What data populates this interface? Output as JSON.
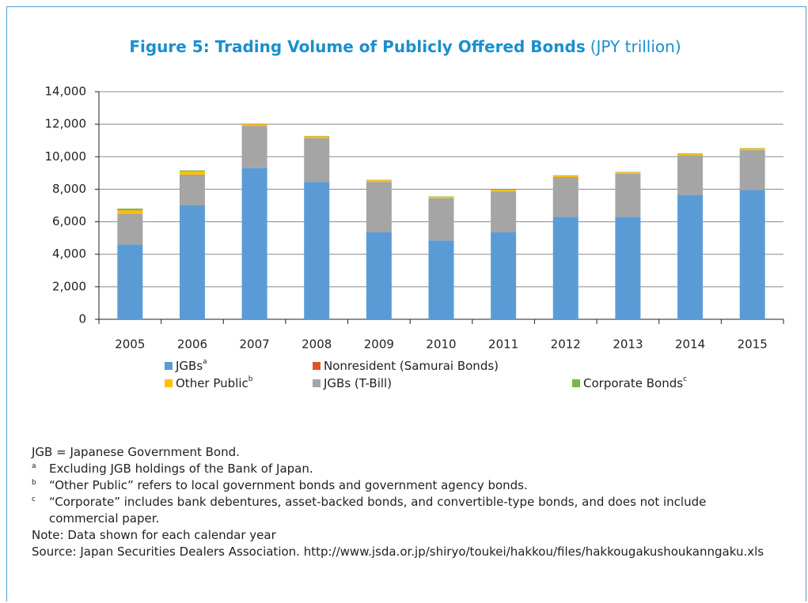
{
  "chart_data": {
    "type": "stacked_bar",
    "title": "Figure 5: Trading Volume of Publicly Offered Bonds",
    "title_unit": "(JPY trillion)",
    "categories": [
      "2005",
      "2006",
      "2007",
      "2008",
      "2009",
      "2010",
      "2011",
      "2012",
      "2013",
      "2014",
      "2015"
    ],
    "series": [
      {
        "name": "JGBs",
        "marker": "a",
        "color": "#5b9bd5",
        "values": [
          4600,
          7000,
          9300,
          8450,
          5350,
          4850,
          5350,
          6300,
          6300,
          7650,
          7950
        ]
      },
      {
        "name": "JGBs (T-Bill)",
        "color": "#a5a5a5",
        "values": [
          1900,
          1900,
          2600,
          2700,
          3100,
          2600,
          2500,
          2450,
          2650,
          2450,
          2450
        ]
      },
      {
        "name": "Other Public",
        "marker": "b",
        "color": "#ffc000",
        "values": [
          200,
          200,
          100,
          100,
          100,
          80,
          100,
          80,
          80,
          80,
          100
        ]
      },
      {
        "name": "Nonresident (Samurai Bonds)",
        "color": "#e0532a",
        "values": [
          10,
          10,
          10,
          10,
          10,
          10,
          10,
          10,
          10,
          10,
          10
        ]
      },
      {
        "name": "Corporate Bonds",
        "marker": "c",
        "color": "#7ab648",
        "values": [
          100,
          50,
          20,
          20,
          20,
          20,
          20,
          20,
          20,
          20,
          20
        ]
      }
    ],
    "ylim": [
      0,
      14000
    ],
    "yticks": [
      0,
      {
        "value": 2000,
        "label": "2,000"
      },
      {
        "value": 4000,
        "label": "4,000"
      },
      {
        "value": 6000,
        "label": "6,000"
      },
      {
        "value": 8000,
        "label": "8,000"
      },
      {
        "value": 10000,
        "label": "10,000"
      },
      {
        "value": 12000,
        "label": "12,000"
      },
      {
        "value": 14000,
        "label": "14,000"
      }
    ],
    "grid": true
  },
  "notes": {
    "abbreviation": "JGB = Japanese Government Bond.",
    "footnotes": [
      {
        "marker": "a",
        "text": "Excluding JGB holdings of the Bank of Japan."
      },
      {
        "marker": "b",
        "text": "“Other Public” refers to local government bonds and government agency bonds."
      },
      {
        "marker": "c",
        "text": "“Corporate” includes bank debentures, asset-backed bonds, and convertible-type bonds, and does not include commercial paper."
      }
    ],
    "note": "Note: Data shown for each calendar year",
    "source": "Source: Japan Securities Dealers Association. http://www.jsda.or.jp/shiryo/toukei/hakkou/files/hakkougakushoukanngaku.xls"
  }
}
